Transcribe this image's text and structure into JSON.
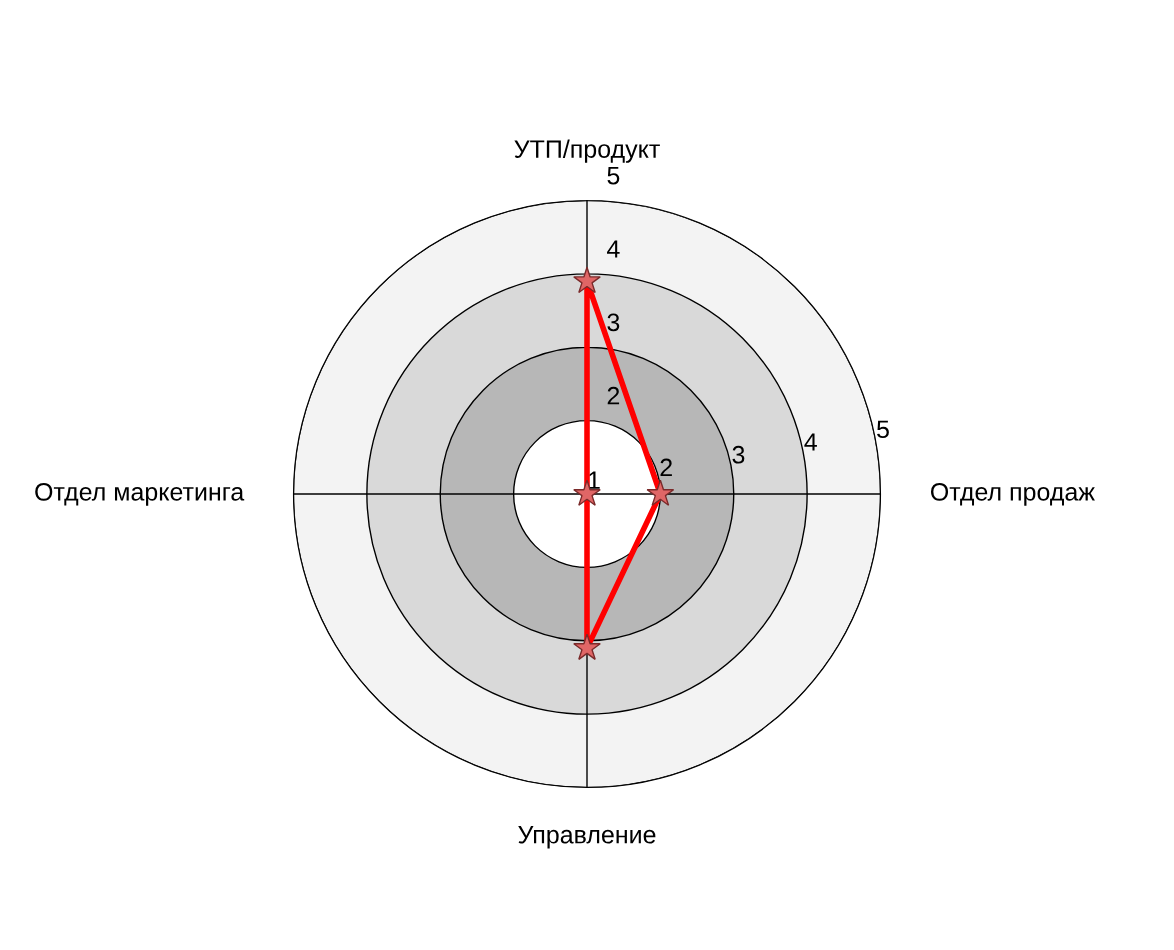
{
  "chart_data": {
    "type": "radar",
    "categories": [
      "УТП/продукт",
      "Отдел продаж",
      "Управление",
      "Отдел маркетинга"
    ],
    "series": [
      {
        "color": "#ff0000",
        "values": [
          3.9,
          2.0,
          3.1,
          1
        ]
      }
    ],
    "ylim": [
      1,
      5
    ],
    "yticks": [
      1,
      2,
      3,
      4,
      5
    ],
    "annotations": [
      "2",
      "3",
      "4",
      "5"
    ],
    "grid": true,
    "marker": "star",
    "line_style": "solid",
    "bands": [
      {
        "axis": "y",
        "color": "#ffffff"
      },
      {
        "axis": "y",
        "color": "#b7b7b7"
      },
      {
        "axis": "y",
        "color": "#d9d9d9"
      },
      {
        "axis": "y",
        "color": "#f3f3f3"
      }
    ]
  }
}
